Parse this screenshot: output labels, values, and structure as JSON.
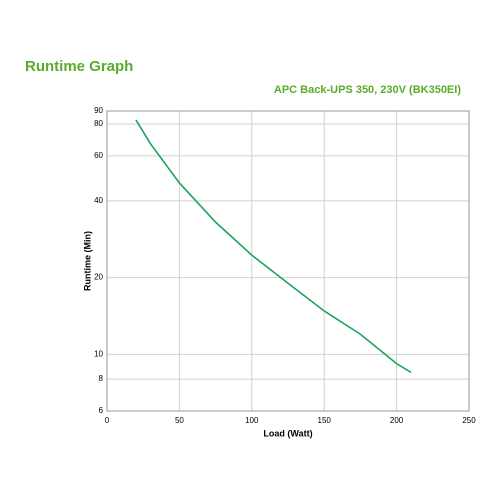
{
  "chart_data": {
    "type": "line",
    "title": "Runtime Graph",
    "subtitle": "APC Back-UPS 350, 230V (BK350EI)",
    "x_label": "Load (Watt)",
    "y_label": "Runtime (Min)",
    "x": [
      20,
      30,
      50,
      75,
      100,
      125,
      150,
      175,
      200,
      210
    ],
    "series": [
      {
        "name": "BK350EI",
        "color": "#1aa55a",
        "values": [
          83,
          67,
          47,
          33,
          24.5,
          19,
          14.8,
          12,
          9.2,
          8.5
        ]
      }
    ],
    "xlim": [
      0,
      250
    ],
    "xticks": [
      0,
      50,
      100,
      150,
      200,
      250
    ],
    "ylim": [
      6,
      90
    ],
    "yticks": [
      6,
      8,
      10,
      20,
      40,
      60,
      80,
      90
    ],
    "y_log": true,
    "grid": true,
    "legend": false
  }
}
